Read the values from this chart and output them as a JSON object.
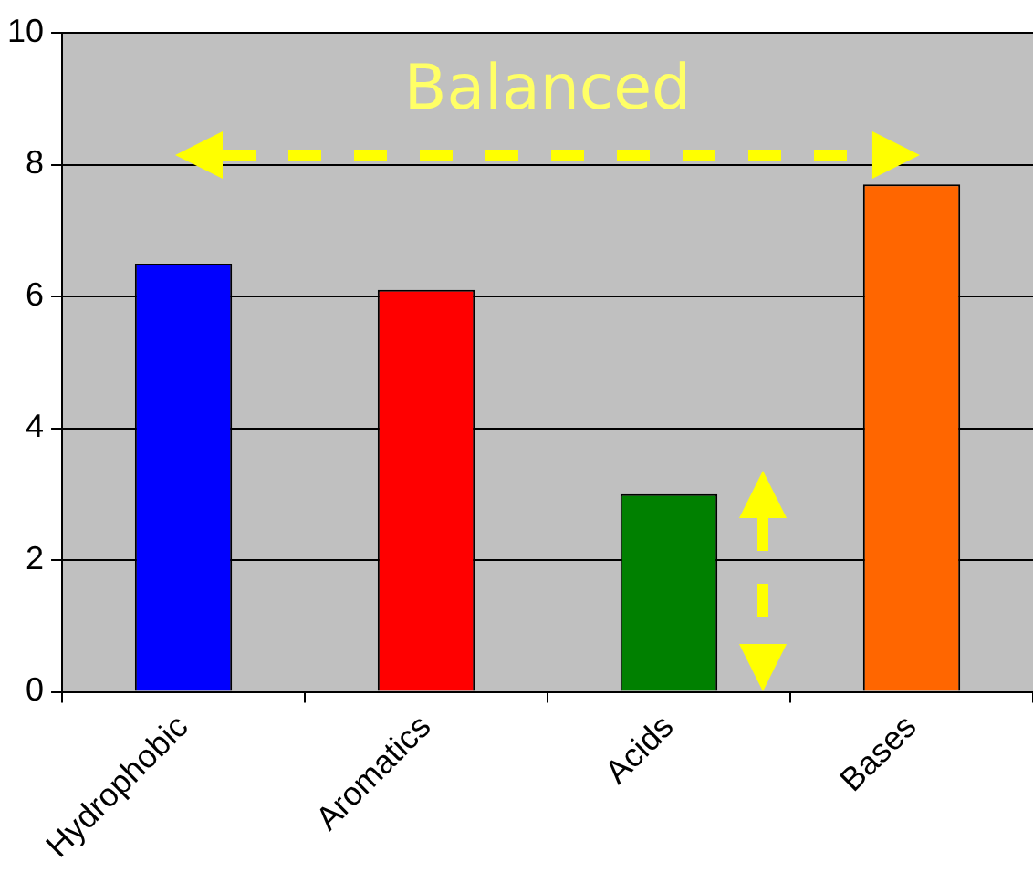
{
  "chart_data": {
    "type": "bar",
    "categories": [
      "Hydrophobic",
      "Aromatics",
      "Acids",
      "Bases"
    ],
    "values": [
      6.5,
      6.1,
      3.0,
      7.7
    ],
    "colors": [
      "#0000ff",
      "#ff0000",
      "#008000",
      "#ff6600"
    ],
    "ylim": [
      0,
      10
    ],
    "yticks": [
      0,
      2,
      4,
      6,
      8,
      10
    ],
    "grid": "y",
    "legend": false,
    "annotations": [
      "Balanced"
    ]
  }
}
